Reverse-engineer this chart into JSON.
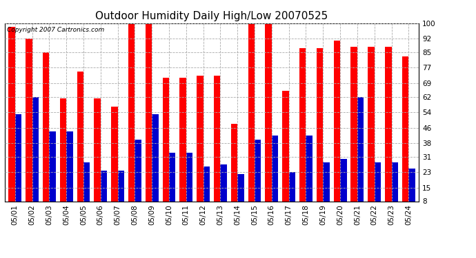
{
  "title": "Outdoor Humidity Daily High/Low 20070525",
  "copyright": "Copyright 2007 Cartronics.com",
  "dates": [
    "05/01",
    "05/02",
    "05/03",
    "05/04",
    "05/05",
    "05/06",
    "05/07",
    "05/08",
    "05/09",
    "05/10",
    "05/11",
    "05/12",
    "05/13",
    "05/14",
    "05/15",
    "05/16",
    "05/17",
    "05/18",
    "05/19",
    "05/20",
    "05/21",
    "05/22",
    "05/23",
    "05/24"
  ],
  "highs": [
    98,
    92,
    85,
    61,
    75,
    61,
    57,
    100,
    100,
    72,
    72,
    73,
    73,
    48,
    100,
    100,
    65,
    87,
    87,
    91,
    88,
    88,
    88,
    83
  ],
  "lows": [
    53,
    62,
    44,
    44,
    28,
    24,
    24,
    40,
    53,
    33,
    33,
    26,
    27,
    22,
    40,
    42,
    23,
    42,
    28,
    30,
    62,
    28,
    28,
    25
  ],
  "high_color": "#ff0000",
  "low_color": "#0000cc",
  "bg_color": "#ffffff",
  "plot_bg_color": "#ffffff",
  "grid_color": "#aaaaaa",
  "yticks": [
    8,
    15,
    23,
    31,
    38,
    46,
    54,
    62,
    69,
    77,
    85,
    92,
    100
  ],
  "ymin": 8,
  "ymax": 100,
  "bar_width": 0.38,
  "title_fontsize": 11,
  "copyright_fontsize": 6.5,
  "tick_fontsize": 7.5
}
